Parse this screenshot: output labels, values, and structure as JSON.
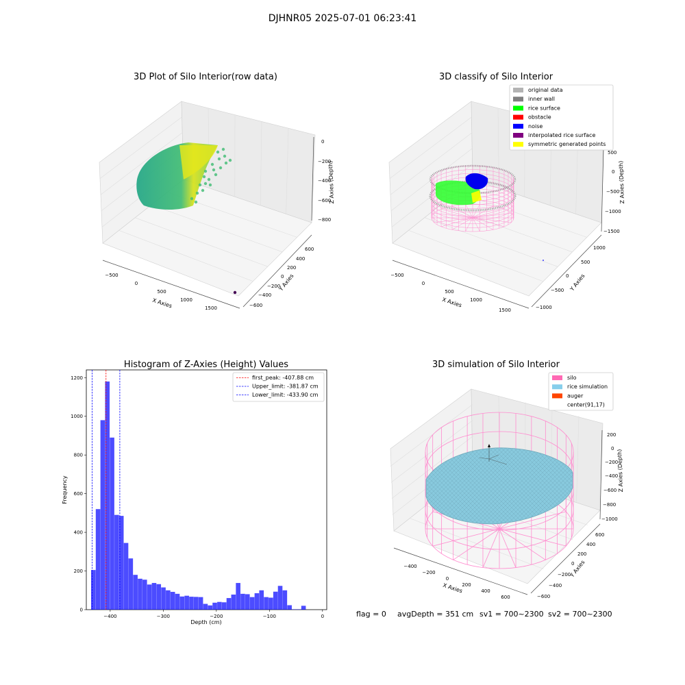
{
  "suptitle": "DJHNR05 2025-07-01 06:23:41",
  "panel1": {
    "title": "3D Plot of Silo Interior(row data)",
    "xlabel": "X Axies",
    "ylabel": "Y Axies",
    "zlabel": "Z Axies (Depth)",
    "xticks": [
      "-500",
      "0",
      "500",
      "1000",
      "1500"
    ],
    "yticks": [
      "600",
      "400",
      "200",
      "0",
      "-200",
      "-400",
      "-600"
    ],
    "zticks": [
      "0",
      "-200",
      "-400",
      "-600",
      "-800"
    ]
  },
  "panel2": {
    "title": "3D classify of Silo Interior",
    "xlabel": "X Axies",
    "ylabel": "Y Axies",
    "zlabel": "Z Axies (Depth)",
    "xticks": [
      "-500",
      "0",
      "500",
      "1000",
      "1500"
    ],
    "yticks": [
      "1000",
      "500",
      "0",
      "-500",
      "-1000"
    ],
    "zticks": [
      "500",
      "0",
      "-500",
      "-1000",
      "-1500"
    ],
    "legend": [
      {
        "label": "original data",
        "color": "#b3b3b3"
      },
      {
        "label": "inner wall",
        "color": "#808080"
      },
      {
        "label": "rice surface",
        "color": "#00ff00"
      },
      {
        "label": "obstacle",
        "color": "#ff0000"
      },
      {
        "label": "noise",
        "color": "#0000ff"
      },
      {
        "label": "interpolated rice surface",
        "color": "#800080"
      },
      {
        "label": "symmetric generated points",
        "color": "#ffff00"
      }
    ]
  },
  "panel4": {
    "title": "3D simulation of Silo Interior",
    "xlabel": "X Axies",
    "ylabel": "Y Axies",
    "zlabel": "Z Axies (Depth)",
    "xticks": [
      "-400",
      "-200",
      "0",
      "200",
      "400",
      "600"
    ],
    "yticks": [
      "600",
      "400",
      "200",
      "0",
      "-200",
      "-400",
      "-600"
    ],
    "zticks": [
      "200",
      "0",
      "-200",
      "-400",
      "-600",
      "-800",
      "-1000"
    ],
    "legend": [
      {
        "label": "silo",
        "color": "#ff69b4"
      },
      {
        "label": "rice simulation",
        "color": "#87ceeb"
      },
      {
        "label": "auger",
        "color": "#ff4500"
      },
      {
        "label": "center(91,17)",
        "color": "#ffffff"
      }
    ]
  },
  "chart_data": {
    "type": "bar",
    "title": "Histogram of Z-Axies (Height) Values",
    "xlabel": "Depth (cm)",
    "ylabel": "Frequency",
    "xlim": [
      -445,
      8
    ],
    "ylim": [
      0,
      1240
    ],
    "xticks": [
      -400,
      -300,
      -200,
      -100,
      0
    ],
    "yticks": [
      0,
      200,
      400,
      600,
      800,
      1000,
      1200
    ],
    "bar_color": "#0000ff",
    "bin_start": -436,
    "bin_width": 8.8,
    "values": [
      205,
      520,
      980,
      1180,
      890,
      490,
      485,
      345,
      265,
      180,
      160,
      155,
      130,
      138,
      132,
      115,
      100,
      92,
      82,
      68,
      72,
      67,
      66,
      65,
      30,
      22,
      36,
      40,
      38,
      60,
      78,
      138,
      82,
      80,
      65,
      85,
      100,
      65,
      62,
      93,
      123,
      100,
      23,
      2,
      2,
      20
    ],
    "vlines": [
      {
        "label": "first_peak: -407.88 cm",
        "x": -407.88,
        "color": "#ff0000"
      },
      {
        "label": "Upper_limit: -381.87 cm",
        "x": -381.87,
        "color": "#0000ff"
      },
      {
        "label": "Lower_limit: -433.90 cm",
        "x": -433.9,
        "color": "#0000ff"
      }
    ],
    "legend_position": "top-right",
    "grid": false
  },
  "status": {
    "flag": "flag = 0",
    "avg_depth": "avgDepth = 351 cm",
    "sv1": "sv1 = 700~2300",
    "sv2": "sv2 = 700~2300"
  }
}
